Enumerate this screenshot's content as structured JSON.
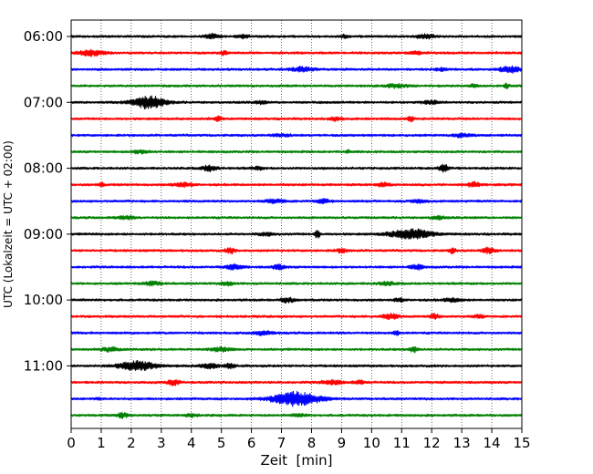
{
  "chart_data": {
    "type": "line",
    "title": "",
    "xlabel": "Zeit  [min]",
    "ylabel": "UTC (Lokalzeit = UTC + 02:00)",
    "xlim": [
      0,
      15
    ],
    "x_ticks": [
      "0",
      "1",
      "2",
      "3",
      "4",
      "5",
      "6",
      "7",
      "8",
      "9",
      "10",
      "11",
      "12",
      "13",
      "14",
      "15"
    ],
    "y_ticks": [
      "06:00",
      "07:00",
      "08:00",
      "09:00",
      "10:00",
      "11:00"
    ],
    "grid": "vertical dotted",
    "trace_colors": [
      "#000000",
      "#ff0000",
      "#0000ff",
      "#008000"
    ],
    "trace_interval_min": 15,
    "traces": [
      {
        "start": "06:00",
        "events": [
          {
            "t": 4.7,
            "a": 0.5,
            "w": 0.25
          },
          {
            "t": 5.7,
            "a": 0.35,
            "w": 0.2
          },
          {
            "t": 11.8,
            "a": 0.45,
            "w": 0.3
          },
          {
            "t": 9.1,
            "a": 0.3,
            "w": 0.15
          }
        ]
      },
      {
        "start": "06:15",
        "events": [
          {
            "t": 0.7,
            "a": 0.65,
            "w": 0.45
          },
          {
            "t": 5.1,
            "a": 0.6,
            "w": 0.1
          },
          {
            "t": 11.5,
            "a": 0.4,
            "w": 0.2
          }
        ]
      },
      {
        "start": "06:30",
        "events": [
          {
            "t": 7.7,
            "a": 0.55,
            "w": 0.35
          },
          {
            "t": 14.6,
            "a": 0.7,
            "w": 0.35
          },
          {
            "t": 12.3,
            "a": 0.3,
            "w": 0.2
          }
        ]
      },
      {
        "start": "06:45",
        "events": [
          {
            "t": 10.8,
            "a": 0.4,
            "w": 0.35
          },
          {
            "t": 14.5,
            "a": 0.7,
            "w": 0.08
          },
          {
            "t": 13.4,
            "a": 0.3,
            "w": 0.15
          }
        ]
      },
      {
        "start": "07:00",
        "events": [
          {
            "t": 2.6,
            "a": 1.4,
            "w": 0.55
          },
          {
            "t": 12.0,
            "a": 0.35,
            "w": 0.3
          },
          {
            "t": 6.3,
            "a": 0.3,
            "w": 0.2
          }
        ]
      },
      {
        "start": "07:15",
        "events": [
          {
            "t": 4.9,
            "a": 0.6,
            "w": 0.1
          },
          {
            "t": 8.8,
            "a": 0.45,
            "w": 0.2
          },
          {
            "t": 11.3,
            "a": 0.55,
            "w": 0.1
          }
        ]
      },
      {
        "start": "07:30",
        "events": [
          {
            "t": 13.0,
            "a": 0.4,
            "w": 0.3
          },
          {
            "t": 7.0,
            "a": 0.25,
            "w": 0.3
          }
        ]
      },
      {
        "start": "07:45",
        "events": [
          {
            "t": 2.3,
            "a": 0.35,
            "w": 0.3
          },
          {
            "t": 9.2,
            "a": 0.45,
            "w": 0.08
          }
        ]
      },
      {
        "start": "08:00",
        "events": [
          {
            "t": 4.6,
            "a": 0.65,
            "w": 0.25
          },
          {
            "t": 6.2,
            "a": 0.4,
            "w": 0.15
          },
          {
            "t": 12.4,
            "a": 0.9,
            "w": 0.15
          }
        ]
      },
      {
        "start": "08:15",
        "events": [
          {
            "t": 1.0,
            "a": 0.4,
            "w": 0.1
          },
          {
            "t": 3.7,
            "a": 0.45,
            "w": 0.3
          },
          {
            "t": 10.4,
            "a": 0.45,
            "w": 0.2
          },
          {
            "t": 13.4,
            "a": 0.55,
            "w": 0.2
          }
        ]
      },
      {
        "start": "08:30",
        "events": [
          {
            "t": 6.8,
            "a": 0.5,
            "w": 0.3
          },
          {
            "t": 8.4,
            "a": 0.45,
            "w": 0.2
          },
          {
            "t": 11.6,
            "a": 0.4,
            "w": 0.25
          }
        ]
      },
      {
        "start": "08:45",
        "events": [
          {
            "t": 1.8,
            "a": 0.3,
            "w": 0.3
          },
          {
            "t": 12.2,
            "a": 0.4,
            "w": 0.2
          }
        ]
      },
      {
        "start": "09:00",
        "events": [
          {
            "t": 8.2,
            "a": 1.1,
            "w": 0.08
          },
          {
            "t": 11.3,
            "a": 1.1,
            "w": 0.7
          },
          {
            "t": 6.5,
            "a": 0.35,
            "w": 0.25
          }
        ]
      },
      {
        "start": "09:15",
        "events": [
          {
            "t": 5.3,
            "a": 0.6,
            "w": 0.15
          },
          {
            "t": 9.0,
            "a": 0.4,
            "w": 0.2
          },
          {
            "t": 13.9,
            "a": 0.7,
            "w": 0.2
          },
          {
            "t": 12.7,
            "a": 0.6,
            "w": 0.1
          }
        ]
      },
      {
        "start": "09:30",
        "events": [
          {
            "t": 5.4,
            "a": 0.5,
            "w": 0.3
          },
          {
            "t": 6.9,
            "a": 0.55,
            "w": 0.2
          },
          {
            "t": 11.5,
            "a": 0.6,
            "w": 0.2
          }
        ]
      },
      {
        "start": "09:45",
        "events": [
          {
            "t": 2.7,
            "a": 0.4,
            "w": 0.3
          },
          {
            "t": 5.2,
            "a": 0.45,
            "w": 0.2
          },
          {
            "t": 10.5,
            "a": 0.35,
            "w": 0.3
          }
        ]
      },
      {
        "start": "10:00",
        "events": [
          {
            "t": 7.2,
            "a": 0.65,
            "w": 0.2
          },
          {
            "t": 10.9,
            "a": 0.4,
            "w": 0.15
          },
          {
            "t": 12.7,
            "a": 0.4,
            "w": 0.3
          }
        ]
      },
      {
        "start": "10:15",
        "events": [
          {
            "t": 10.6,
            "a": 0.65,
            "w": 0.25
          },
          {
            "t": 12.1,
            "a": 0.55,
            "w": 0.15
          },
          {
            "t": 13.6,
            "a": 0.35,
            "w": 0.2
          }
        ]
      },
      {
        "start": "10:30",
        "events": [
          {
            "t": 6.4,
            "a": 0.5,
            "w": 0.3
          },
          {
            "t": 10.8,
            "a": 0.6,
            "w": 0.1
          }
        ]
      },
      {
        "start": "10:45",
        "events": [
          {
            "t": 1.3,
            "a": 0.45,
            "w": 0.3
          },
          {
            "t": 5.0,
            "a": 0.45,
            "w": 0.3
          },
          {
            "t": 11.4,
            "a": 0.6,
            "w": 0.15
          }
        ]
      },
      {
        "start": "11:00",
        "events": [
          {
            "t": 2.2,
            "a": 1.1,
            "w": 0.6
          },
          {
            "t": 4.6,
            "a": 0.55,
            "w": 0.3
          },
          {
            "t": 5.3,
            "a": 0.55,
            "w": 0.15
          }
        ]
      },
      {
        "start": "11:15",
        "events": [
          {
            "t": 3.4,
            "a": 0.6,
            "w": 0.2
          },
          {
            "t": 8.7,
            "a": 0.45,
            "w": 0.35
          },
          {
            "t": 9.6,
            "a": 0.35,
            "w": 0.2
          }
        ]
      },
      {
        "start": "11:30",
        "events": [
          {
            "t": 7.5,
            "a": 1.7,
            "w": 0.75
          },
          {
            "t": 0.9,
            "a": 0.35,
            "w": 0.08
          }
        ]
      },
      {
        "start": "11:45",
        "events": [
          {
            "t": 1.7,
            "a": 0.55,
            "w": 0.2
          },
          {
            "t": 4.0,
            "a": 0.35,
            "w": 0.2
          },
          {
            "t": 7.6,
            "a": 0.3,
            "w": 0.2
          }
        ]
      }
    ]
  }
}
